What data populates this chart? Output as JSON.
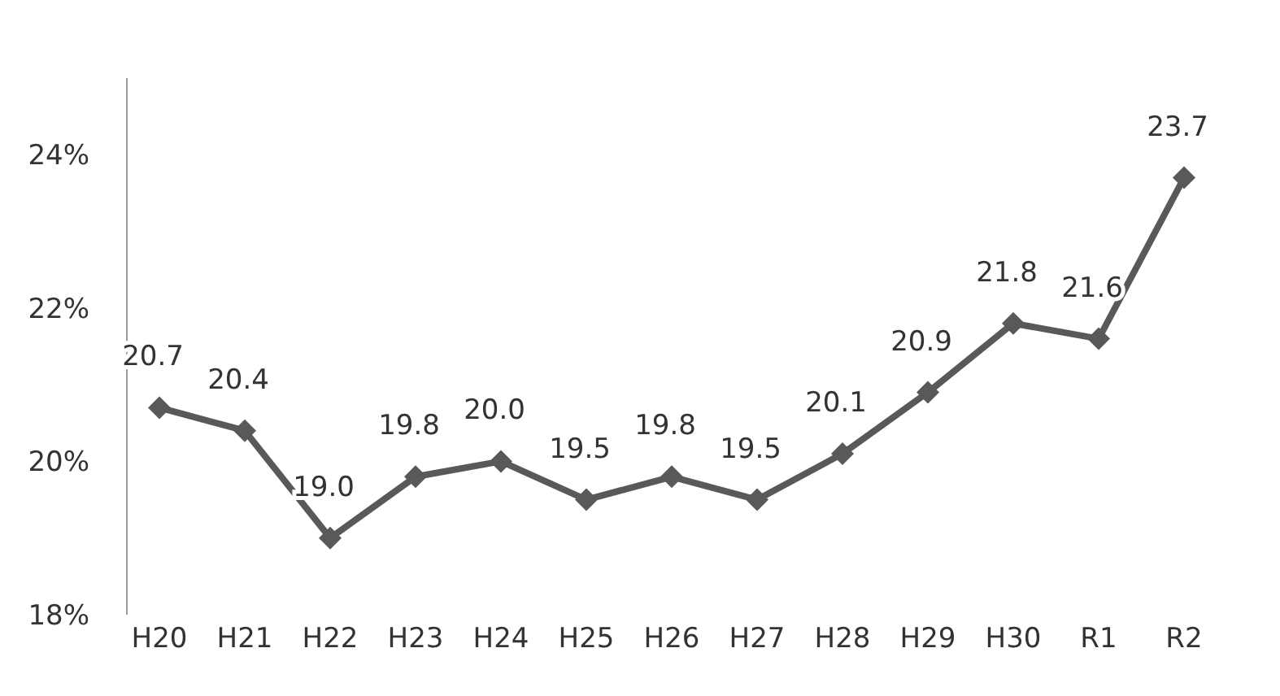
{
  "chart_data": {
    "type": "line",
    "categories": [
      "H20",
      "H21",
      "H22",
      "H23",
      "H24",
      "H25",
      "H26",
      "H27",
      "H28",
      "H29",
      "H30",
      "R1",
      "R2"
    ],
    "series": [
      {
        "color": "#595959",
        "values": [
          20.7,
          20.4,
          19.0,
          19.8,
          20.0,
          19.5,
          19.8,
          19.5,
          20.1,
          20.9,
          21.8,
          21.6,
          23.7
        ],
        "value_labels": [
          "20.7",
          "20.4",
          "19.0",
          "19.8",
          "20.0",
          "19.5",
          "19.8",
          "19.5",
          "20.1",
          "20.9",
          "21.8",
          "21.6",
          "23.7"
        ]
      }
    ],
    "ylim": [
      18,
      25
    ],
    "yticks": [
      {
        "value": 18,
        "label": "18%"
      },
      {
        "value": 20,
        "label": "20%"
      },
      {
        "value": 22,
        "label": "22%"
      },
      {
        "value": 24,
        "label": "24%"
      }
    ],
    "grid": false,
    "legend": false,
    "marker": "diamond",
    "line_style": "solid"
  }
}
